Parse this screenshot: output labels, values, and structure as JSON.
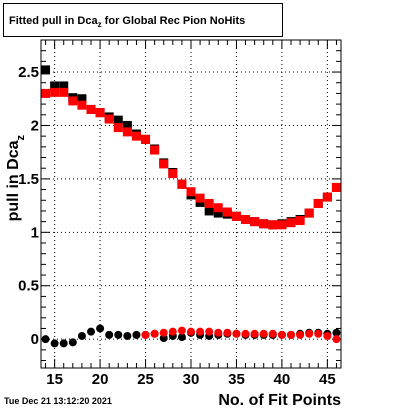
{
  "title": {
    "main_before": "Fitted pull in Dca",
    "sub": "z",
    "main_after": "  for Global Rec Pion NoHits"
  },
  "date_stamp": "Tue Dec 21 13:12:20 2021",
  "colors": {
    "series1": "#000000",
    "series2": "#ff0000",
    "grid": "#000000",
    "frame": "#000000"
  },
  "chart_data": {
    "type": "scatter",
    "xlabel": "No. of Fit Points",
    "ylabel_main": "pull in Dca",
    "ylabel_sub": "z",
    "xlim": [
      13.5,
      46.5
    ],
    "ylim": [
      -0.27,
      2.8
    ],
    "grid": true,
    "x_ticks": [
      15,
      20,
      25,
      30,
      35,
      40,
      45
    ],
    "y_ticks": [
      0,
      0.5,
      1,
      1.5,
      2,
      2.5
    ],
    "y_tick_labels": [
      "0",
      "0.5",
      "1",
      "1.5",
      "2",
      "2.5"
    ],
    "marker": "square",
    "series": [
      {
        "color": "#000000",
        "x": [
          14,
          15,
          16,
          17,
          18,
          19,
          20,
          21,
          22,
          23,
          24,
          25,
          26,
          27,
          28,
          29,
          30,
          31,
          32,
          33,
          34,
          35,
          36,
          37,
          38,
          39,
          40,
          41,
          42,
          43,
          44,
          45,
          46
        ],
        "y": [
          2.52,
          2.37,
          2.37,
          2.26,
          2.25,
          2.15,
          2.12,
          2.08,
          2.05,
          2.0,
          1.92,
          1.87,
          1.78,
          1.65,
          1.56,
          1.45,
          1.35,
          1.28,
          1.2,
          1.18,
          1.17,
          1.15,
          1.12,
          1.1,
          1.08,
          1.07,
          1.08,
          1.1,
          1.12,
          1.18,
          1.27,
          1.33,
          1.42
        ]
      },
      {
        "color": "#000000",
        "x": [
          14,
          15,
          16,
          17,
          18,
          19,
          20,
          21,
          22,
          23,
          24,
          25,
          26,
          27,
          28,
          29,
          30,
          31,
          32,
          33,
          34,
          35,
          36,
          37,
          38,
          39,
          40,
          41,
          42,
          43,
          44,
          45,
          46
        ],
        "y": [
          0.0,
          -0.04,
          -0.04,
          -0.03,
          0.03,
          0.07,
          0.1,
          0.04,
          0.04,
          0.03,
          0.04,
          0.04,
          0.05,
          0.01,
          0.03,
          0.02,
          0.06,
          0.04,
          0.03,
          0.04,
          0.05,
          0.05,
          0.04,
          0.04,
          0.04,
          0.04,
          0.04,
          0.04,
          0.05,
          0.06,
          0.06,
          0.05,
          0.06
        ]
      },
      {
        "color": "#ff0000",
        "x": [
          14,
          15,
          16,
          17,
          18,
          19,
          20,
          21,
          22,
          23,
          24,
          25,
          26,
          27,
          28,
          29,
          30,
          31,
          32,
          33,
          34,
          35,
          36,
          37,
          38,
          39,
          40,
          41,
          42,
          43,
          44,
          45,
          46
        ],
        "y": [
          2.3,
          2.31,
          2.31,
          2.23,
          2.19,
          2.15,
          2.12,
          2.06,
          1.98,
          1.94,
          1.9,
          1.87,
          1.77,
          1.64,
          1.55,
          1.45,
          1.38,
          1.32,
          1.27,
          1.23,
          1.19,
          1.15,
          1.12,
          1.1,
          1.08,
          1.07,
          1.07,
          1.09,
          1.11,
          1.18,
          1.27,
          1.33,
          1.42
        ]
      },
      {
        "color": "#ff0000",
        "x": [
          25,
          26,
          27,
          28,
          29,
          30,
          31,
          32,
          33,
          34,
          35,
          36,
          37,
          38,
          39,
          40,
          41,
          42,
          43,
          44,
          45,
          46
        ],
        "y": [
          0.04,
          0.05,
          0.06,
          0.07,
          0.08,
          0.07,
          0.07,
          0.07,
          0.06,
          0.06,
          0.05,
          0.05,
          0.05,
          0.05,
          0.05,
          0.04,
          0.04,
          0.04,
          0.05,
          0.05,
          0.03,
          0.0
        ]
      }
    ]
  }
}
